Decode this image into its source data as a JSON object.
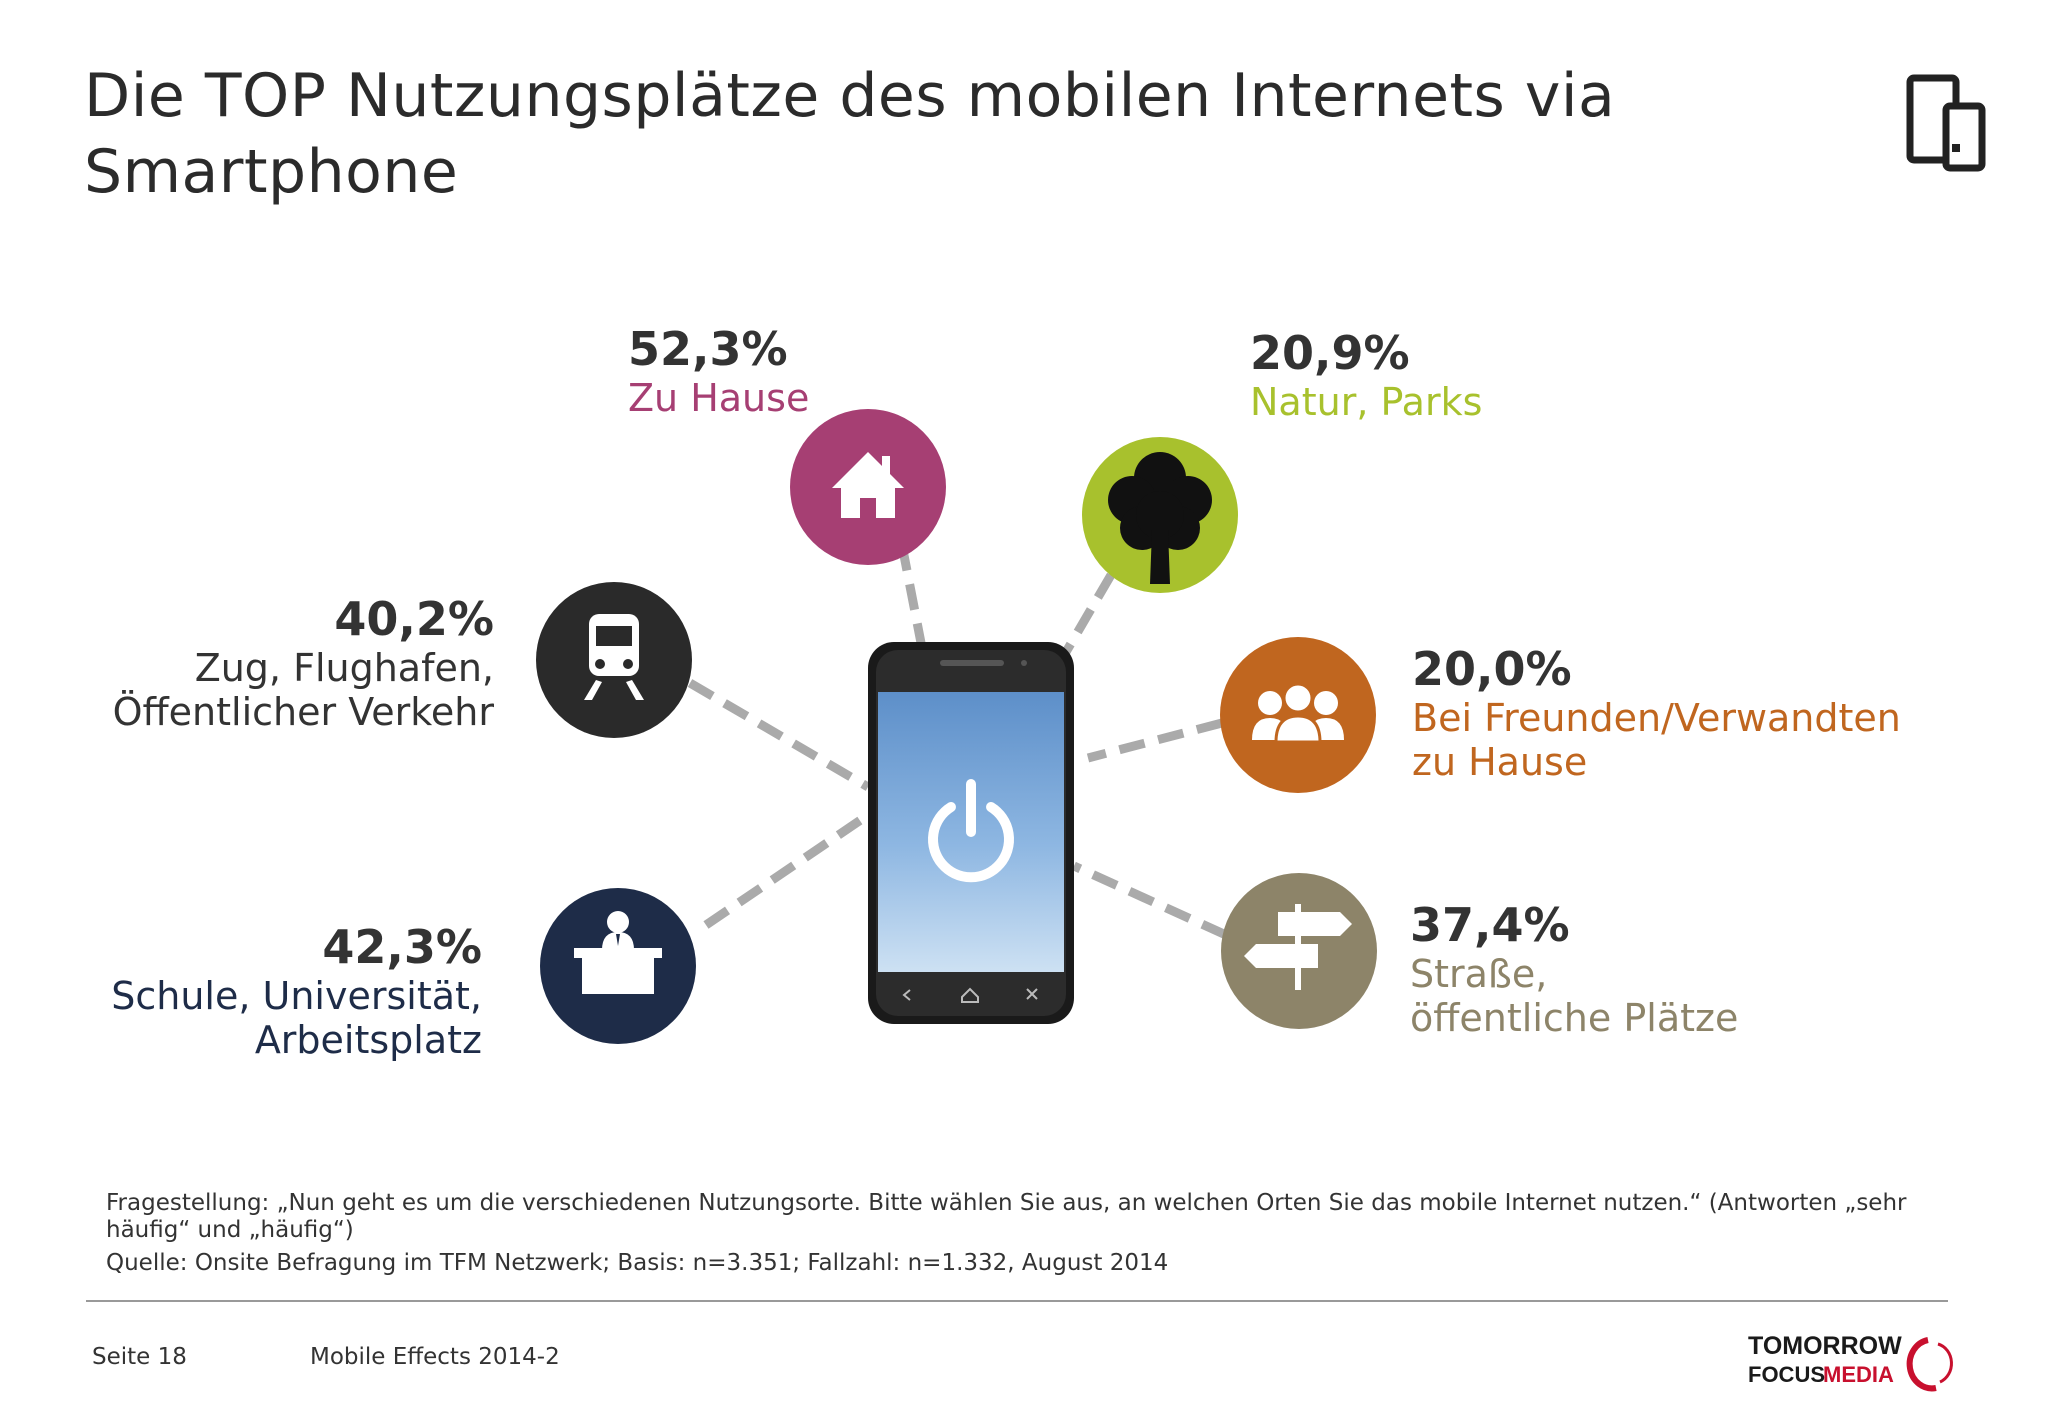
{
  "title": "Die TOP Nutzungsplätze des mobilen Internets via Smartphone",
  "chart_data": {
    "type": "radial-infographic",
    "unit": "%",
    "items": [
      {
        "key": "home",
        "value": "52,3%",
        "label_lines": [
          "Zu Hause"
        ],
        "icon": "house-icon",
        "color": "#a63f73"
      },
      {
        "key": "nature",
        "value": "20,9%",
        "label_lines": [
          "Natur, Parks"
        ],
        "icon": "tree-icon",
        "color": "#a8c12d"
      },
      {
        "key": "transit",
        "value": "40,2%",
        "label_lines": [
          "Zug, Flughafen,",
          "Öffentlicher Verkehr"
        ],
        "icon": "train-icon",
        "color": "#2a2a2a"
      },
      {
        "key": "friends",
        "value": "20,0%",
        "label_lines": [
          "Bei Freunden/Verwandten",
          "zu Hause"
        ],
        "icon": "people-icon",
        "color": "#c0661f"
      },
      {
        "key": "work",
        "value": "42,3%",
        "label_lines": [
          "Schule, Universität,",
          "Arbeitsplatz"
        ],
        "icon": "desk-person-icon",
        "color": "#1e2c48"
      },
      {
        "key": "street",
        "value": "37,4%",
        "label_lines": [
          "Straße,",
          "öffentliche Plätze"
        ],
        "icon": "signpost-icon",
        "color": "#8d8469"
      }
    ]
  },
  "footer": {
    "question": "Fragestellung: „Nun geht es um die verschiedenen Nutzungsorte. Bitte wählen Sie aus, an welchen Orten Sie das mobile Internet nutzen.“ (Antworten „sehr häufig“ und „häufig“)",
    "source": "Quelle: Onsite Befragung im TFM Netzwerk; Basis: n=3.351; Fallzahl: n=1.332, August 2014",
    "page": "Seite 18",
    "report": "Mobile Effects 2014-2",
    "logo_line1": "TOMORROW",
    "logo_line2a": "FOCUS",
    "logo_line2b": "MEDIA"
  },
  "colors": {
    "text_dark": "#333333",
    "dash_line": "#aaaaaa",
    "logo_red": "#c8102e"
  }
}
